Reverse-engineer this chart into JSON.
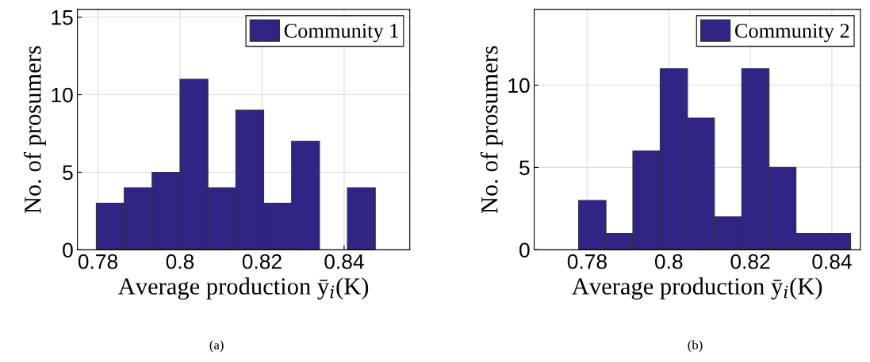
{
  "chart_data": [
    {
      "type": "histogram",
      "xlabel": "Average production ȳ$_{i}$(K)",
      "ylabel": "No. of prosumers",
      "bins": [
        0.7796,
        0.7864,
        0.7932,
        0.8,
        0.8068,
        0.8136,
        0.8204,
        0.8272,
        0.834,
        0.8408,
        0.8476
      ],
      "series": [
        {
          "name": "Community 1",
          "color": "#2e2585",
          "values": [
            3,
            4,
            5,
            11,
            4,
            9,
            3,
            7,
            0,
            4
          ]
        }
      ],
      "xlim": [
        0.775,
        0.856
      ],
      "xticks": [
        0.78,
        0.8,
        0.82,
        0.84
      ],
      "ylim": [
        0,
        15.5
      ],
      "yticks": [
        0,
        5,
        10,
        15
      ],
      "grid": true,
      "legend": "top right",
      "annotations": [
        "(a)"
      ]
    },
    {
      "type": "histogram",
      "xlabel": "Average production ȳ$_{i}$(K)",
      "ylabel": "No. of prosumers",
      "bins": [
        0.7779,
        0.7846,
        0.7912,
        0.7979,
        0.8046,
        0.8112,
        0.8179,
        0.8246,
        0.8312,
        0.8379,
        0.8446
      ],
      "series": [
        {
          "name": "Community 2",
          "color": "#2e2585",
          "values": [
            3,
            1,
            6,
            11,
            8,
            2,
            11,
            5,
            1,
            1
          ]
        }
      ],
      "xlim": [
        0.767,
        0.847
      ],
      "xticks": [
        0.78,
        0.8,
        0.82,
        0.84
      ],
      "ylim": [
        0,
        14.6
      ],
      "yticks": [
        0,
        5,
        10
      ],
      "grid": true,
      "legend": "top right",
      "annotations": [
        "(b)"
      ]
    }
  ]
}
